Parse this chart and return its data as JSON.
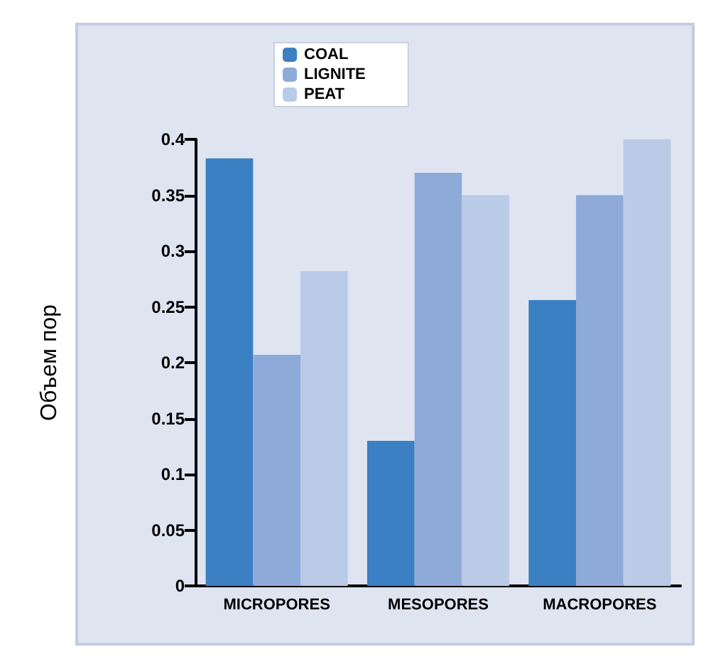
{
  "chart_data": {
    "type": "bar",
    "ylabel": "Объем пор",
    "categories": [
      "MICROPORES",
      "MESOPORES",
      "MACROPORES"
    ],
    "series": [
      {
        "name": "COAL",
        "color": "#3a80c3",
        "values": [
          0.383,
          0.13,
          0.256
        ]
      },
      {
        "name": "LIGNITE",
        "color": "#8eaad9",
        "values": [
          0.207,
          0.37,
          0.35
        ]
      },
      {
        "name": "PEAT",
        "color": "#b9cbe6",
        "values": [
          0.282,
          0.35,
          0.4
        ]
      }
    ],
    "ylim": [
      0,
      0.4
    ],
    "yticks": [
      0,
      0.05,
      0.1,
      0.15,
      0.2,
      0.25,
      0.3,
      0.35,
      0.4
    ],
    "grid": false,
    "legend": "top left"
  }
}
